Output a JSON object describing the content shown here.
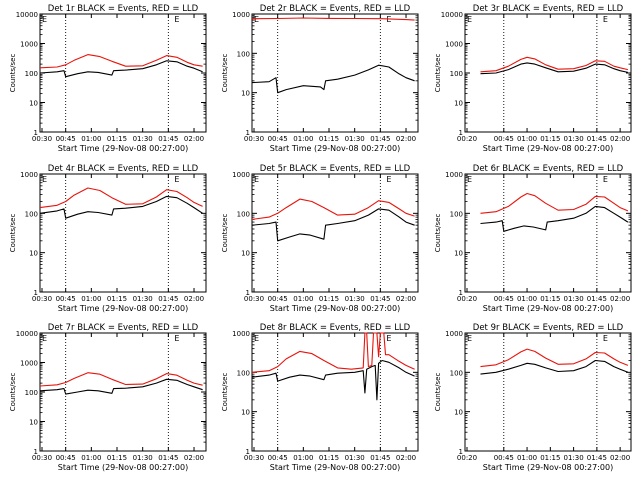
{
  "colors": {
    "events": "#000000",
    "lld": "#e8140c",
    "axis": "#000000"
  },
  "chart_data": [
    {
      "type": "line",
      "title": "Det 1r BLACK = Events, RED = LLD",
      "xlabel": "Start Time (29-Nov-08 00:27:00)",
      "ylabel": "Counts/sec",
      "yscale": "log",
      "ylim": [
        1,
        10000
      ],
      "yticks": [
        "1",
        "10",
        "100",
        "1000",
        "10000"
      ],
      "xlim": [
        "00:30",
        "02:07"
      ],
      "xticks": [
        "00:30",
        "00:45",
        "01:00",
        "01:15",
        "01:30",
        "01:45",
        "02:00"
      ],
      "vlines": [
        "00:45",
        "01:45"
      ],
      "marker": "E",
      "series": [
        {
          "name": "LLD",
          "color": "red",
          "x": [
            "00:30",
            "00:40",
            "00:45",
            "00:50",
            "00:58",
            "01:05",
            "01:12",
            "01:20",
            "01:30",
            "01:38",
            "01:44",
            "01:50",
            "01:56",
            "02:00",
            "02:05"
          ],
          "values": [
            150,
            160,
            190,
            270,
            420,
            360,
            250,
            170,
            175,
            270,
            390,
            340,
            230,
            190,
            170
          ]
        },
        {
          "name": "Events",
          "color": "black",
          "x": [
            "00:30",
            "00:40",
            "00:44",
            "00:45",
            "00:52",
            "00:58",
            "01:04",
            "01:12",
            "01:13",
            "01:20",
            "01:30",
            "01:38",
            "01:44",
            "01:50",
            "01:56",
            "02:00",
            "02:05"
          ],
          "values": [
            100,
            110,
            120,
            75,
            95,
            110,
            105,
            85,
            120,
            125,
            140,
            190,
            260,
            240,
            170,
            145,
            110
          ]
        }
      ]
    },
    {
      "type": "line",
      "title": "Det 2r BLACK = Events, RED = LLD",
      "xlabel": "Start Time (29-Nov-08 00:27:00)",
      "ylabel": "Counts/sec",
      "yscale": "log",
      "ylim": [
        1,
        1000
      ],
      "yticks": [
        "1",
        "10",
        "100",
        "1000"
      ],
      "xlim": [
        "00:30",
        "02:07"
      ],
      "xticks": [
        "00:30",
        "00:45",
        "01:00",
        "01:15",
        "01:30",
        "01:45",
        "02:00"
      ],
      "vlines": [
        "00:45",
        "01:45"
      ],
      "marker": "E",
      "series": [
        {
          "name": "LLD",
          "color": "red",
          "x": [
            "00:30",
            "00:45",
            "01:00",
            "01:15",
            "01:30",
            "01:45",
            "02:00",
            "02:05"
          ],
          "values": [
            760,
            770,
            790,
            775,
            770,
            760,
            720,
            700
          ]
        },
        {
          "name": "Events",
          "color": "black",
          "x": [
            "00:30",
            "00:40",
            "00:44",
            "00:45",
            "00:50",
            "01:00",
            "01:10",
            "01:12",
            "01:13",
            "01:20",
            "01:30",
            "01:38",
            "01:44",
            "01:50",
            "01:56",
            "02:00",
            "02:05"
          ],
          "values": [
            18,
            19,
            24,
            10,
            12,
            15,
            14,
            12,
            20,
            22,
            28,
            38,
            50,
            45,
            30,
            24,
            20
          ]
        }
      ]
    },
    {
      "type": "line",
      "title": "Det 3r BLACK = Events, RED = LLD",
      "xlabel": "Start Time (29-Nov-08 00:27:00)",
      "ylabel": "Counts/sec",
      "yscale": "log",
      "ylim": [
        1,
        10000
      ],
      "yticks": [
        "1",
        "10",
        "100",
        "1000",
        "10000"
      ],
      "xlim": [
        "00:20",
        "02:07"
      ],
      "xticks": [
        "00:20",
        "00:45",
        "01:00",
        "01:15",
        "01:30",
        "01:45",
        "02:00"
      ],
      "vlines": [
        "00:45",
        "01:45"
      ],
      "marker": "E",
      "series": [
        {
          "name": "LLD",
          "color": "red",
          "x": [
            "00:30",
            "00:40",
            "00:48",
            "00:56",
            "01:00",
            "01:05",
            "01:12",
            "01:20",
            "01:30",
            "01:38",
            "01:44",
            "01:50",
            "01:56",
            "02:00",
            "02:05"
          ],
          "values": [
            110,
            120,
            170,
            290,
            340,
            300,
            190,
            135,
            140,
            180,
            260,
            250,
            170,
            150,
            130
          ]
        },
        {
          "name": "Events",
          "color": "black",
          "x": [
            "00:30",
            "00:40",
            "00:48",
            "00:56",
            "01:00",
            "01:05",
            "01:12",
            "01:20",
            "01:30",
            "01:38",
            "01:44",
            "01:50",
            "01:56",
            "02:00",
            "02:05"
          ],
          "values": [
            95,
            100,
            130,
            200,
            220,
            200,
            150,
            110,
            115,
            145,
            200,
            190,
            140,
            120,
            105
          ]
        }
      ]
    },
    {
      "type": "line",
      "title": "Det 4r BLACK = Events, RED = LLD",
      "xlabel": "Start Time (29-Nov-08 00:27:00)",
      "ylabel": "Counts/sec",
      "yscale": "log",
      "ylim": [
        1,
        1000
      ],
      "yticks": [
        "1",
        "10",
        "100",
        "1000"
      ],
      "xlim": [
        "00:30",
        "02:07"
      ],
      "xticks": [
        "00:30",
        "00:45",
        "01:00",
        "01:15",
        "01:30",
        "01:45",
        "02:00"
      ],
      "vlines": [
        "00:45",
        "01:45"
      ],
      "marker": "E",
      "series": [
        {
          "name": "LLD",
          "color": "red",
          "x": [
            "00:30",
            "00:40",
            "00:45",
            "00:50",
            "00:58",
            "01:05",
            "01:12",
            "01:20",
            "01:30",
            "01:38",
            "01:44",
            "01:50",
            "01:56",
            "02:00",
            "02:05"
          ],
          "values": [
            140,
            160,
            200,
            290,
            440,
            380,
            250,
            170,
            175,
            260,
            400,
            360,
            250,
            190,
            150
          ]
        },
        {
          "name": "Events",
          "color": "black",
          "x": [
            "00:30",
            "00:40",
            "00:44",
            "00:45",
            "00:52",
            "00:58",
            "01:04",
            "01:12",
            "01:13",
            "01:20",
            "01:30",
            "01:38",
            "01:44",
            "01:50",
            "01:56",
            "02:00",
            "02:05"
          ],
          "values": [
            100,
            115,
            130,
            75,
            95,
            110,
            105,
            90,
            130,
            135,
            150,
            200,
            270,
            250,
            180,
            140,
            100
          ]
        }
      ]
    },
    {
      "type": "line",
      "title": "Det 5r BLACK = Events, RED = LLD",
      "xlabel": "Start Time (29-Nov-08 00:27:00)",
      "ylabel": "Counts/sec",
      "yscale": "log",
      "ylim": [
        1,
        1000
      ],
      "yticks": [
        "1",
        "10",
        "100",
        "1000"
      ],
      "xlim": [
        "00:30",
        "02:07"
      ],
      "xticks": [
        "00:30",
        "00:45",
        "01:00",
        "01:15",
        "01:30",
        "01:45",
        "02:00"
      ],
      "vlines": [
        "00:45",
        "01:45"
      ],
      "marker": "E",
      "series": [
        {
          "name": "LLD",
          "color": "red",
          "x": [
            "00:30",
            "00:40",
            "00:45",
            "00:50",
            "00:58",
            "01:05",
            "01:12",
            "01:20",
            "01:30",
            "01:38",
            "01:44",
            "01:50",
            "01:56",
            "02:00",
            "02:05"
          ],
          "values": [
            70,
            80,
            100,
            140,
            230,
            200,
            140,
            90,
            95,
            140,
            210,
            190,
            130,
            100,
            85
          ]
        },
        {
          "name": "Events",
          "color": "black",
          "x": [
            "00:30",
            "00:40",
            "00:44",
            "00:45",
            "00:52",
            "00:58",
            "01:04",
            "01:12",
            "01:13",
            "01:20",
            "01:30",
            "01:38",
            "01:44",
            "01:50",
            "01:56",
            "02:00",
            "02:05"
          ],
          "values": [
            50,
            55,
            60,
            20,
            25,
            30,
            28,
            22,
            50,
            55,
            65,
            90,
            130,
            120,
            80,
            60,
            50
          ]
        }
      ]
    },
    {
      "type": "line",
      "title": "Det 6r BLACK = Events, RED = LLD",
      "xlabel": "Start Time (29-Nov-08 00:27:00)",
      "ylabel": "Counts/sec",
      "yscale": "log",
      "ylim": [
        1,
        1000
      ],
      "yticks": [
        "1",
        "10",
        "100",
        "1000"
      ],
      "xlim": [
        "00:20",
        "02:07"
      ],
      "xticks": [
        "00:20",
        "00:45",
        "01:00",
        "01:15",
        "01:30",
        "01:45",
        "02:00"
      ],
      "vlines": [
        "00:45",
        "01:45"
      ],
      "marker": "E",
      "series": [
        {
          "name": "LLD",
          "color": "red",
          "x": [
            "00:30",
            "00:40",
            "00:48",
            "00:56",
            "01:00",
            "01:05",
            "01:12",
            "01:20",
            "01:30",
            "01:38",
            "01:44",
            "01:50",
            "01:56",
            "02:00",
            "02:05"
          ],
          "values": [
            100,
            110,
            150,
            260,
            320,
            280,
            180,
            120,
            125,
            170,
            270,
            260,
            180,
            140,
            115
          ]
        },
        {
          "name": "Events",
          "color": "black",
          "x": [
            "00:30",
            "00:40",
            "00:44",
            "00:45",
            "00:52",
            "00:58",
            "01:04",
            "01:12",
            "01:13",
            "01:20",
            "01:30",
            "01:38",
            "01:44",
            "01:50",
            "01:56",
            "02:00",
            "02:05"
          ],
          "values": [
            55,
            60,
            65,
            35,
            42,
            48,
            45,
            38,
            60,
            65,
            75,
            100,
            150,
            140,
            100,
            80,
            60
          ]
        }
      ]
    },
    {
      "type": "line",
      "title": "Det 7r BLACK = Events, RED = LLD",
      "xlabel": "Start Time (29-Nov-08 00:27:00)",
      "ylabel": "Counts/sec",
      "yscale": "log",
      "ylim": [
        1,
        10000
      ],
      "yticks": [
        "1",
        "10",
        "100",
        "1000",
        "10000"
      ],
      "xlim": [
        "00:30",
        "02:07"
      ],
      "xticks": [
        "00:30",
        "00:45",
        "01:00",
        "01:15",
        "01:30",
        "01:45",
        "02:00"
      ],
      "vlines": [
        "00:45",
        "01:45"
      ],
      "marker": "E",
      "series": [
        {
          "name": "LLD",
          "color": "red",
          "x": [
            "00:30",
            "00:40",
            "00:45",
            "00:50",
            "00:58",
            "01:05",
            "01:12",
            "01:20",
            "01:30",
            "01:38",
            "01:44",
            "01:50",
            "01:56",
            "02:00",
            "02:05"
          ],
          "values": [
            160,
            175,
            210,
            290,
            450,
            400,
            270,
            180,
            185,
            280,
            420,
            370,
            250,
            200,
            170
          ]
        },
        {
          "name": "Events",
          "color": "black",
          "x": [
            "00:30",
            "00:40",
            "00:44",
            "00:45",
            "00:52",
            "00:58",
            "01:04",
            "01:12",
            "01:13",
            "01:20",
            "01:30",
            "01:38",
            "01:44",
            "01:50",
            "01:56",
            "02:00",
            "02:05"
          ],
          "values": [
            110,
            120,
            130,
            85,
            100,
            115,
            110,
            90,
            130,
            135,
            150,
            200,
            270,
            250,
            180,
            150,
            120
          ]
        }
      ]
    },
    {
      "type": "line",
      "title": "Det 8r BLACK = Events, RED = LLD",
      "xlabel": "Start Time (29-Nov-08 00:27:00)",
      "ylabel": "Counts/sec",
      "yscale": "log",
      "ylim": [
        1,
        1000
      ],
      "yticks": [
        "1",
        "10",
        "100",
        "1000"
      ],
      "xlim": [
        "00:30",
        "02:07"
      ],
      "xticks": [
        "00:30",
        "00:45",
        "01:00",
        "01:15",
        "01:30",
        "01:45",
        "02:00"
      ],
      "vlines": [
        "00:45",
        "01:45"
      ],
      "marker": "E",
      "series": [
        {
          "name": "LLD",
          "color": "red",
          "x": [
            "00:30",
            "00:40",
            "00:45",
            "00:50",
            "00:58",
            "01:05",
            "01:12",
            "01:20",
            "01:28",
            "01:35",
            "01:36",
            "01:37",
            "01:38",
            "01:40",
            "01:41",
            "01:43",
            "01:44",
            "01:45",
            "01:47",
            "01:48",
            "01:50",
            "01:56",
            "02:00",
            "02:05"
          ],
          "values": [
            100,
            110,
            140,
            220,
            340,
            300,
            200,
            130,
            120,
            130,
            1000,
            1000,
            140,
            150,
            1000,
            1000,
            250,
            1000,
            1000,
            280,
            280,
            190,
            150,
            120
          ]
        },
        {
          "name": "Events",
          "color": "black",
          "x": [
            "00:30",
            "00:40",
            "00:44",
            "00:45",
            "00:52",
            "00:58",
            "01:04",
            "01:12",
            "01:13",
            "01:20",
            "01:30",
            "01:35",
            "01:36",
            "01:37",
            "01:40",
            "01:42",
            "01:43",
            "01:44",
            "01:46",
            "01:50",
            "01:56",
            "02:00",
            "02:05"
          ],
          "values": [
            75,
            85,
            95,
            60,
            75,
            85,
            80,
            65,
            85,
            95,
            100,
            110,
            30,
            120,
            140,
            150,
            20,
            170,
            200,
            180,
            130,
            100,
            80
          ]
        }
      ]
    },
    {
      "type": "line",
      "title": "Det 9r BLACK = Events, RED = LLD",
      "xlabel": "Start Time (29-Nov-08 00:27:00)",
      "ylabel": "Counts/sec",
      "yscale": "log",
      "ylim": [
        1,
        1000
      ],
      "yticks": [
        "1",
        "10",
        "100",
        "1000"
      ],
      "xlim": [
        "00:20",
        "02:07"
      ],
      "xticks": [
        "00:20",
        "00:45",
        "01:00",
        "01:15",
        "01:30",
        "01:45",
        "02:00"
      ],
      "vlines": [
        "00:45",
        "01:45"
      ],
      "marker": "E",
      "series": [
        {
          "name": "LLD",
          "color": "red",
          "x": [
            "00:30",
            "00:40",
            "00:48",
            "00:56",
            "01:00",
            "01:05",
            "01:12",
            "01:20",
            "01:30",
            "01:38",
            "01:44",
            "01:50",
            "01:56",
            "02:00",
            "02:05"
          ],
          "values": [
            140,
            155,
            210,
            330,
            390,
            340,
            230,
            160,
            165,
            220,
            320,
            310,
            220,
            180,
            150
          ]
        },
        {
          "name": "Events",
          "color": "black",
          "x": [
            "00:30",
            "00:40",
            "00:48",
            "00:56",
            "01:00",
            "01:05",
            "01:12",
            "01:20",
            "01:30",
            "01:38",
            "01:44",
            "01:50",
            "01:56",
            "02:00",
            "02:05"
          ],
          "values": [
            90,
            100,
            120,
            150,
            170,
            160,
            130,
            105,
            110,
            140,
            200,
            190,
            140,
            120,
            100
          ]
        }
      ]
    }
  ]
}
